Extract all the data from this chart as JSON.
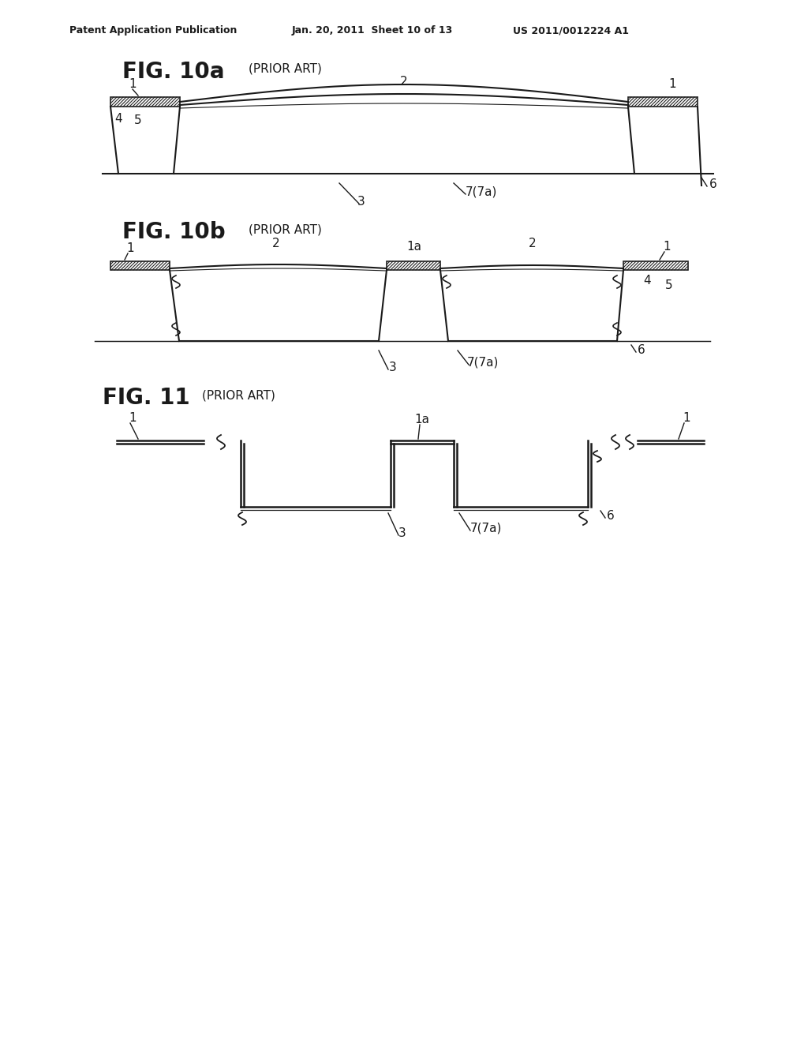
{
  "bg_color": "#ffffff",
  "line_color": "#1a1a1a",
  "hatch_color": "#333333",
  "header_left": "Patent Application Publication",
  "header_mid": "Jan. 20, 2011  Sheet 10 of 13",
  "header_right": "US 2011/0012224 A1",
  "fig10a_title": "FIG. 10a",
  "fig10a_sub": "(PRIOR ART)",
  "fig10b_title": "FIG. 10b",
  "fig10b_sub": "(PRIOR ART)",
  "fig11_title": "FIG. 11",
  "fig11_sub": "(PRIOR ART)"
}
